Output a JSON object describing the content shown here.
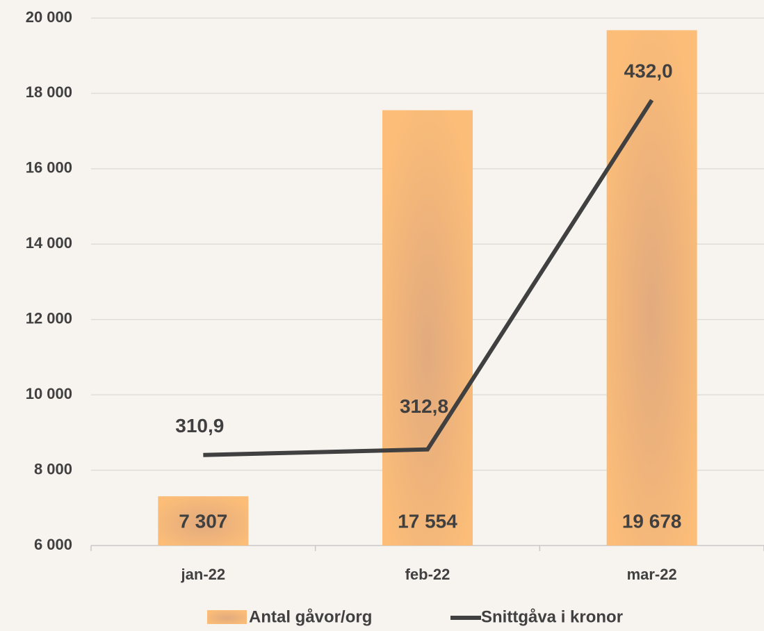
{
  "chart_data": {
    "type": "bar_line",
    "categories": [
      "jan-22",
      "feb-22",
      "mar-22"
    ],
    "series": [
      {
        "name": "Antal gåvor/org",
        "type": "bar",
        "color": "#f9bc79",
        "values": [
          7307,
          17554,
          19678
        ],
        "value_labels": [
          "7 307",
          "17 554",
          "19 678"
        ]
      },
      {
        "name": "Snittgåva i kronor",
        "type": "line",
        "axis": "y2",
        "color": "#404040",
        "values": [
          310.9,
          312.8,
          432.0
        ],
        "value_labels": [
          "310,9",
          "312,8",
          "432,0"
        ]
      }
    ],
    "ylim": [
      6000,
      20000
    ],
    "yticks": [
      {
        "value": 6000,
        "label": "6 000"
      },
      {
        "value": 8000,
        "label": "8 000"
      },
      {
        "value": 10000,
        "label": "10 000"
      },
      {
        "value": 12000,
        "label": "12 000"
      },
      {
        "value": 14000,
        "label": "14 000"
      },
      {
        "value": 16000,
        "label": "16 000"
      },
      {
        "value": 18000,
        "label": "18 000"
      },
      {
        "value": 20000,
        "label": "20 000"
      }
    ],
    "y2lim": [
      280,
      460
    ],
    "grid": true,
    "legend": "bottom"
  }
}
